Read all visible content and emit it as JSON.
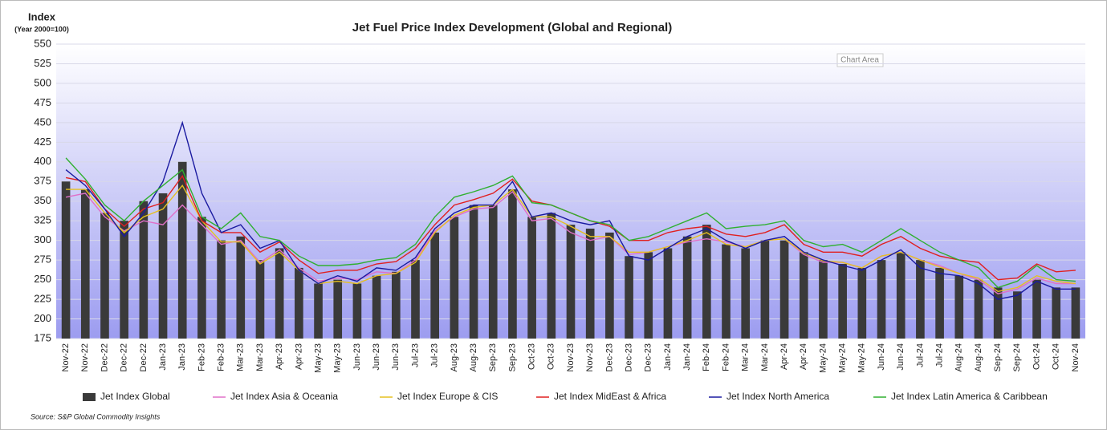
{
  "chart_data": {
    "type": "combo",
    "title": "Jet Fuel Price Index Development (Global and Regional)",
    "y_label": "Index",
    "y_sublabel": "(Year 2000=100)",
    "source": "Source: S&P Global Commodity Insights",
    "tooltip": "Chart Area",
    "categories": [
      "Nov-22",
      "Nov-22",
      "Dec-22",
      "Dec-22",
      "Dec-22",
      "Jan-23",
      "Jan-23",
      "Feb-23",
      "Feb-23",
      "Mar-23",
      "Mar-23",
      "Apr-23",
      "Apr-23",
      "May-23",
      "May-23",
      "Jun-23",
      "Jun-23",
      "Jun-23",
      "Jul-23",
      "Jul-23",
      "Aug-23",
      "Aug-23",
      "Sep-23",
      "Sep-23",
      "Oct-23",
      "Oct-23",
      "Nov-23",
      "Nov-23",
      "Dec-23",
      "Dec-23",
      "Dec-23",
      "Jan-24",
      "Jan-24",
      "Feb-24",
      "Feb-24",
      "Mar-24",
      "Mar-24",
      "Apr-24",
      "Apr-24",
      "May-24",
      "May-24",
      "May-24",
      "Jun-24",
      "Jun-24",
      "Jul-24",
      "Jul-24",
      "Aug-24",
      "Aug-24",
      "Sep-24",
      "Sep-24",
      "Oct-24",
      "Oct-24",
      "Nov-24"
    ],
    "series": [
      {
        "name": "Jet Index Global",
        "type": "bar",
        "color": "#3a3a3a",
        "values": [
          375,
          365,
          335,
          325,
          350,
          360,
          400,
          330,
          300,
          305,
          275,
          290,
          265,
          245,
          250,
          245,
          255,
          260,
          275,
          310,
          330,
          345,
          345,
          365,
          330,
          335,
          320,
          315,
          310,
          280,
          285,
          290,
          305,
          320,
          295,
          290,
          300,
          300,
          285,
          275,
          270,
          265,
          275,
          285,
          275,
          265,
          255,
          250,
          240,
          235,
          250,
          240,
          240
        ]
      },
      {
        "name": "Jet Index Asia & Oceania",
        "type": "line",
        "color": "#e070c8",
        "values": [
          355,
          360,
          330,
          312,
          325,
          320,
          345,
          320,
          295,
          300,
          272,
          288,
          265,
          248,
          252,
          250,
          260,
          258,
          275,
          312,
          330,
          340,
          342,
          362,
          325,
          328,
          310,
          300,
          305,
          282,
          285,
          292,
          298,
          302,
          298,
          292,
          300,
          302,
          282,
          272,
          272,
          265,
          280,
          285,
          275,
          268,
          258,
          250,
          232,
          238,
          252,
          245,
          245
        ]
      },
      {
        "name": "Jet Index Europe & CIS",
        "type": "line",
        "color": "#e6c020",
        "values": [
          365,
          365,
          335,
          310,
          330,
          340,
          370,
          325,
          298,
          298,
          270,
          285,
          262,
          245,
          248,
          245,
          255,
          258,
          272,
          310,
          332,
          342,
          345,
          365,
          330,
          330,
          318,
          305,
          305,
          285,
          285,
          292,
          300,
          310,
          295,
          292,
          300,
          302,
          284,
          274,
          272,
          265,
          280,
          285,
          275,
          266,
          258,
          252,
          235,
          240,
          255,
          248,
          245
        ]
      },
      {
        "name": "Jet Index MidEast & Africa",
        "type": "line",
        "color": "#e02020",
        "values": [
          380,
          375,
          340,
          318,
          340,
          348,
          382,
          325,
          310,
          310,
          285,
          298,
          275,
          258,
          262,
          262,
          270,
          273,
          290,
          320,
          345,
          352,
          360,
          378,
          350,
          345,
          335,
          325,
          318,
          300,
          300,
          310,
          315,
          318,
          308,
          305,
          310,
          320,
          295,
          285,
          285,
          280,
          295,
          305,
          290,
          280,
          275,
          272,
          250,
          252,
          270,
          260,
          262
        ]
      },
      {
        "name": "Jet Index North America",
        "type": "line",
        "color": "#1a1aa0",
        "values": [
          390,
          370,
          340,
          305,
          335,
          375,
          450,
          360,
          310,
          320,
          290,
          300,
          262,
          245,
          255,
          248,
          265,
          262,
          278,
          315,
          335,
          345,
          345,
          375,
          330,
          335,
          325,
          320,
          325,
          280,
          275,
          290,
          305,
          315,
          300,
          290,
          300,
          305,
          285,
          275,
          268,
          262,
          275,
          288,
          265,
          258,
          255,
          245,
          225,
          230,
          248,
          238,
          238
        ]
      },
      {
        "name": "Jet Index Latin America & Caribbean",
        "type": "line",
        "color": "#30b030",
        "values": [
          405,
          378,
          345,
          325,
          350,
          370,
          390,
          330,
          315,
          335,
          305,
          300,
          280,
          268,
          268,
          270,
          275,
          278,
          295,
          330,
          355,
          362,
          370,
          382,
          348,
          345,
          335,
          325,
          320,
          300,
          305,
          315,
          325,
          335,
          315,
          318,
          320,
          325,
          300,
          292,
          295,
          285,
          300,
          315,
          300,
          285,
          275,
          265,
          240,
          248,
          268,
          250,
          248
        ]
      }
    ],
    "ylim": [
      175,
      550
    ],
    "yticks": [
      175,
      200,
      225,
      250,
      275,
      300,
      325,
      350,
      375,
      400,
      425,
      450,
      475,
      500,
      525,
      550
    ],
    "grid": true
  }
}
